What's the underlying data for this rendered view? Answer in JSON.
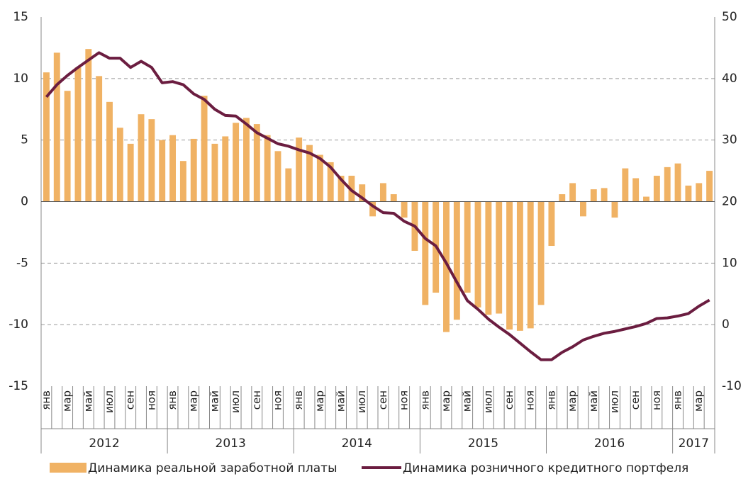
{
  "chart_data": {
    "type": "bar",
    "categories": [
      "янв",
      null,
      "мар",
      null,
      "май",
      null,
      "июл",
      null,
      "сен",
      null,
      "ноя",
      null,
      "янв",
      null,
      "мар",
      null,
      "май",
      null,
      "июл",
      null,
      "сен",
      null,
      "ноя",
      null,
      "янв",
      null,
      "мар",
      null,
      "май",
      null,
      "июл",
      null,
      "сен",
      null,
      "ноя",
      null,
      "янв",
      null,
      "мар",
      null,
      "май",
      null,
      "июл",
      null,
      "сен",
      null,
      "ноя",
      null,
      "янв",
      null,
      "мар",
      null,
      "май",
      null,
      "июл",
      null,
      "сен",
      null,
      "ноя",
      null,
      "янв",
      null,
      "мар",
      null
    ],
    "years": [
      "2012",
      "2013",
      "2014",
      "2015",
      "2016",
      "2017"
    ],
    "series": [
      {
        "name": "Динамика реальной заработной платы",
        "color": "#f0b264",
        "type": "bar",
        "values": [
          10.5,
          12.1,
          9.0,
          10.9,
          12.4,
          10.2,
          8.1,
          6.0,
          4.7,
          7.1,
          6.7,
          5.0,
          5.4,
          3.3,
          5.1,
          8.6,
          4.7,
          5.3,
          6.4,
          6.8,
          6.3,
          5.4,
          4.1,
          2.7,
          5.2,
          4.6,
          3.8,
          3.2,
          2.1,
          2.1,
          1.4,
          -1.2,
          1.5,
          0.6,
          -1.3,
          -4.0,
          -8.4,
          -7.4,
          -10.6,
          -9.6,
          -7.4,
          -8.6,
          -9.2,
          -9.1,
          -10.4,
          -10.5,
          -10.3,
          -8.4,
          -3.6,
          0.6,
          1.5,
          -1.2,
          1.0,
          1.1,
          -1.3,
          2.7,
          1.9,
          0.4,
          2.1,
          2.8,
          3.1,
          1.3,
          1.5,
          2.5
        ]
      },
      {
        "name": "Динамика розничного кредитного портфеля",
        "color": "#6b1d40",
        "type": "line",
        "axis": "y2",
        "values": [
          37,
          39,
          40.5,
          41.8,
          43,
          44.2,
          43.3,
          43.3,
          41.8,
          42.8,
          41.8,
          39.3,
          39.5,
          39,
          37.5,
          36.6,
          35,
          34,
          33.9,
          32.6,
          31.2,
          30.3,
          29.4,
          29,
          28.4,
          27.9,
          27,
          25.6,
          23.6,
          21.8,
          20.6,
          19.3,
          18.2,
          18.1,
          16.8,
          16,
          14,
          12.8,
          10,
          6.9,
          3.9,
          2.5,
          0.9,
          -0.4,
          -1.6,
          -3.0,
          -4.4,
          -5.7,
          -5.7,
          -4.5,
          -3.6,
          -2.5,
          -1.9,
          -1.4,
          -1.1,
          -0.7,
          -0.3,
          0.2,
          1.0,
          1.1,
          1.4,
          1.8,
          3.0,
          4.0
        ]
      }
    ],
    "ylim": [
      -15,
      15
    ],
    "yticks": [
      -15,
      -10,
      -5,
      0,
      5,
      10,
      15
    ],
    "y2lim": [
      -10,
      50
    ],
    "y2ticks": [
      -10,
      0,
      10,
      20,
      30,
      40,
      50
    ],
    "grid": true,
    "legend": "bottom"
  }
}
